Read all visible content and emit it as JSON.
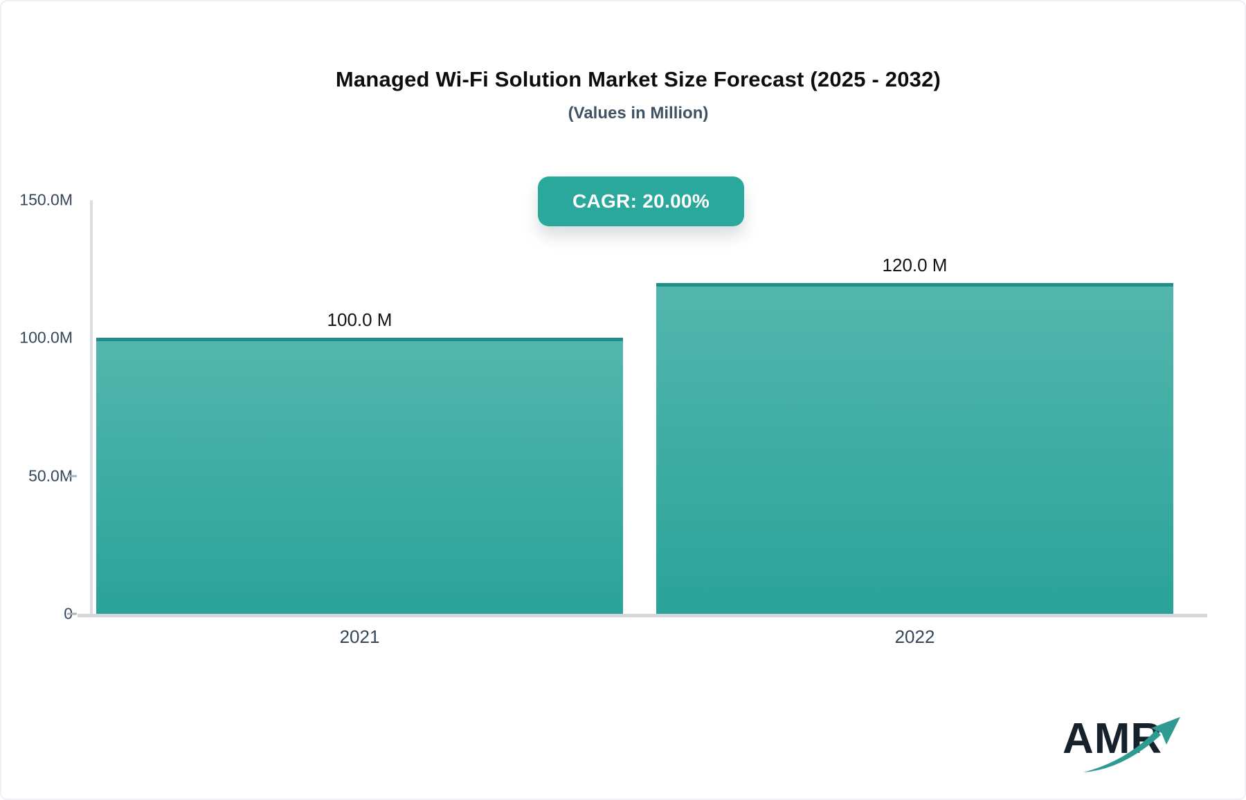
{
  "header": {
    "title": "Managed Wi-Fi Solution Market Size Forecast (2025 - 2032)",
    "subtitle": "(Values in Million)",
    "cagr_badge_label": "CAGR: 20.00%"
  },
  "chart_data": {
    "type": "bar",
    "title": "Managed Wi-Fi Solution Market Size Forecast (2025 - 2032)",
    "subtitle": "(Values in Million)",
    "unit": "Million",
    "cagr": "20.00%",
    "categories": [
      "2021",
      "2022"
    ],
    "values": [
      100.0,
      120.0
    ],
    "data_labels": [
      "100.0 M",
      "120.0 M"
    ],
    "ylim": [
      0,
      150
    ],
    "grid": "off",
    "y_ticks": [
      {
        "label": "150.0M",
        "value": 150,
        "dash": false
      },
      {
        "label": "100.0M",
        "value": 100,
        "dash": false
      },
      {
        "label": "50.0M",
        "value": 50,
        "dash": true
      },
      {
        "label": "0",
        "value": 0,
        "dash": true
      }
    ]
  },
  "colors": {
    "accent_teal": "#2BA89C",
    "bar_gradient_top": "#53B6AD",
    "bar_gradient_bottom": "#2AA399",
    "bar_top_border": "#1F8E88",
    "axis_line": "#d5d7dc",
    "tick_text": "#36465a",
    "logo_arrow_teal": "#2E9A91",
    "logo_text_dark": "#16212B"
  },
  "branding": {
    "logo_text": "AMR"
  }
}
